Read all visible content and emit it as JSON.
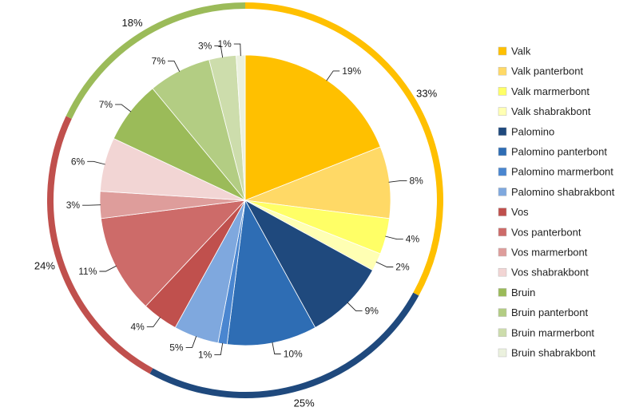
{
  "chart_data": {
    "type": "pie",
    "legend_position": "right",
    "inner": {
      "slices": [
        {
          "name": "Valk",
          "value": 19,
          "label": "19%",
          "color": "#FFC000"
        },
        {
          "name": "Valk panterbont",
          "value": 8,
          "label": "8%",
          "color": "#FFD966"
        },
        {
          "name": "Valk marmerbont",
          "value": 4,
          "label": "4%",
          "color": "#FFFF66"
        },
        {
          "name": "Valk shabrakbont",
          "value": 2,
          "label": "2%",
          "color": "#FFFFB3"
        },
        {
          "name": "Palomino",
          "value": 9,
          "label": "9%",
          "color": "#1F497D"
        },
        {
          "name": "Palomino panterbont",
          "value": 10,
          "label": "10%",
          "color": "#2E6DB4"
        },
        {
          "name": "Palomino marmerbont",
          "value": 1,
          "label": "1%",
          "color": "#4A86D0"
        },
        {
          "name": "Palomino shabrakbont",
          "value": 5,
          "label": "5%",
          "color": "#7FA8DE"
        },
        {
          "name": "Vos",
          "value": 4,
          "label": "4%",
          "color": "#C0504D"
        },
        {
          "name": "Vos panterbont",
          "value": 11,
          "label": "11%",
          "color": "#CD6B69"
        },
        {
          "name": "Vos marmerbont",
          "value": 3,
          "label": "3%",
          "color": "#DE9D9B"
        },
        {
          "name": "Vos shabrakbont",
          "value": 6,
          "label": "6%",
          "color": "#F2D5D4"
        },
        {
          "name": "Bruin",
          "value": 7,
          "label": "7%",
          "color": "#9BBB59"
        },
        {
          "name": "Bruin panterbont",
          "value": 7,
          "label": "7%",
          "color": "#B3CD83"
        },
        {
          "name": "Bruin marmerbont",
          "value": 3,
          "label": "3%",
          "color": "#CDDDAC"
        },
        {
          "name": "Bruin shabrakbont",
          "value": 1,
          "label": "1%",
          "color": "#EBF1DE"
        }
      ]
    },
    "outer": {
      "groups": [
        {
          "name": "Valk",
          "value": 33,
          "label": "33%",
          "color": "#FFC000"
        },
        {
          "name": "Palomino",
          "value": 25,
          "label": "25%",
          "color": "#1F497D"
        },
        {
          "name": "Vos",
          "value": 24,
          "label": "24%",
          "color": "#C0504D"
        },
        {
          "name": "Bruin",
          "value": 18,
          "label": "18%",
          "color": "#9BBB59"
        }
      ]
    }
  }
}
